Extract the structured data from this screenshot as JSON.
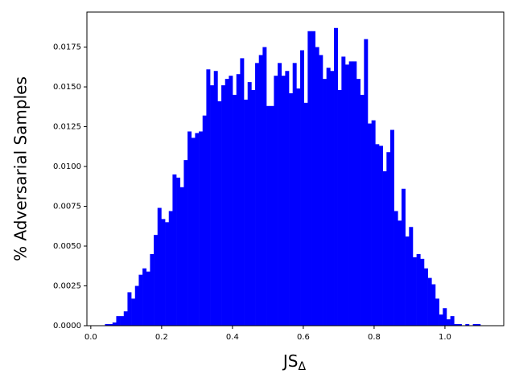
{
  "chart_data": {
    "type": "histogram",
    "x_label": "JS",
    "x_label_subscript": "Δ",
    "y_label": "% Adversarial Samples",
    "color": "#0000ff",
    "xlim": [
      -0.011,
      1.166
    ],
    "ylim": [
      0,
      0.0197
    ],
    "xticks": [
      {
        "value": 0,
        "label": "0.0"
      },
      0.2,
      0.4,
      0.6,
      0.8,
      {
        "value": 1,
        "label": "1.0"
      }
    ],
    "yticks": [
      {
        "value": 0,
        "label": "0.0000"
      },
      0.0025,
      {
        "value": 0.005,
        "label": "0.0050"
      },
      0.0075,
      {
        "value": 0.01,
        "label": "0.0100"
      },
      0.0125,
      {
        "value": 0.015,
        "label": "0.0150"
      },
      0.0175
    ],
    "bins": [
      0.04,
      0.0506,
      0.0612,
      0.0718,
      0.0824,
      0.093,
      0.1036,
      0.1142,
      0.1248,
      0.1354,
      0.146,
      0.1566,
      0.1672,
      0.1778,
      0.1884,
      0.199,
      0.2096,
      0.2202,
      0.2308,
      0.2414,
      0.252,
      0.2626,
      0.2732,
      0.2838,
      0.2944,
      0.305,
      0.3156,
      0.3262,
      0.3368,
      0.3474,
      0.358,
      0.3686,
      0.3792,
      0.3898,
      0.4004,
      0.411,
      0.4216,
      0.4322,
      0.4428,
      0.4534,
      0.464,
      0.4746,
      0.4852,
      0.4958,
      0.5064,
      0.517,
      0.5276,
      0.5382,
      0.5488,
      0.5594,
      0.57,
      0.5806,
      0.5912,
      0.6018,
      0.6124,
      0.623,
      0.6336,
      0.6442,
      0.6548,
      0.6654,
      0.676,
      0.6866,
      0.6972,
      0.7078,
      0.7184,
      0.729,
      0.7396,
      0.7502,
      0.7608,
      0.7714,
      0.782,
      0.7926,
      0.8032,
      0.8138,
      0.8244,
      0.835,
      0.8456,
      0.8562,
      0.8668,
      0.8774,
      0.888,
      0.8986,
      0.9092,
      0.9198,
      0.9304,
      0.941,
      0.9516,
      0.9622,
      0.9728,
      0.9834,
      0.994,
      1.0046,
      1.0152,
      1.0258,
      1.0364,
      1.047,
      1.0576,
      1.0682,
      1.0788,
      1.0894,
      1.1
    ],
    "values": [
      0.0001,
      0.0001,
      0.0002,
      0.0006,
      0.0006,
      0.0009,
      0.0021,
      0.0017,
      0.0025,
      0.0032,
      0.0036,
      0.0034,
      0.0045,
      0.0057,
      0.0074,
      0.0067,
      0.0065,
      0.0072,
      0.0095,
      0.0093,
      0.0087,
      0.0104,
      0.0122,
      0.0118,
      0.0121,
      0.0122,
      0.0132,
      0.0161,
      0.0151,
      0.016,
      0.0141,
      0.0151,
      0.0155,
      0.0157,
      0.0145,
      0.0158,
      0.0168,
      0.0142,
      0.0153,
      0.0148,
      0.0165,
      0.017,
      0.0175,
      0.0138,
      0.0138,
      0.0157,
      0.0165,
      0.0157,
      0.016,
      0.0146,
      0.0165,
      0.0149,
      0.0173,
      0.014,
      0.0185,
      0.0185,
      0.0175,
      0.017,
      0.0155,
      0.0162,
      0.016,
      0.0187,
      0.0148,
      0.0169,
      0.0164,
      0.0166,
      0.0166,
      0.0155,
      0.0145,
      0.018,
      0.0127,
      0.0129,
      0.0114,
      0.0113,
      0.0097,
      0.0109,
      0.0123,
      0.0072,
      0.0066,
      0.0086,
      0.0056,
      0.0062,
      0.0043,
      0.0045,
      0.0042,
      0.0036,
      0.003,
      0.0026,
      0.0017,
      0.0007,
      0.0011,
      0.0004,
      0.0006,
      0.0001,
      0.0001,
      0,
      0.0001,
      0,
      0.0001,
      0.0001
    ]
  }
}
